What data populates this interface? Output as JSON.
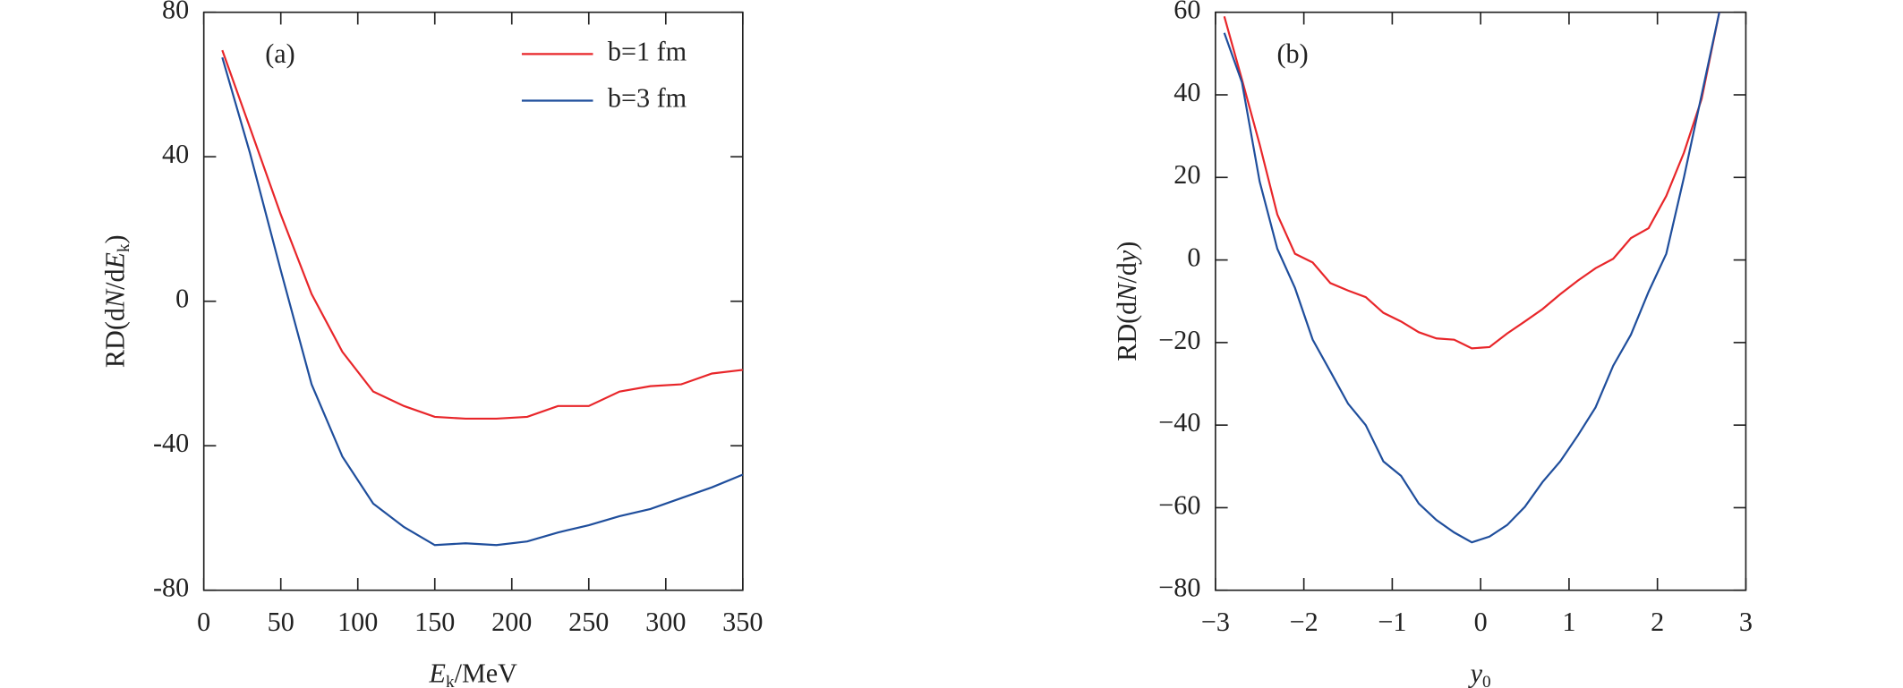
{
  "chart_data": [
    {
      "type": "line",
      "annotation": "(a)",
      "xlabel": [
        "E",
        "k",
        "/MeV"
      ],
      "ylabel": [
        "RD(d",
        "N",
        "/d",
        "E",
        "k",
        ")"
      ],
      "x": [
        12,
        30,
        50,
        70,
        90,
        110,
        130,
        150,
        170,
        190,
        210,
        230,
        250,
        270,
        290,
        310,
        330,
        350
      ],
      "series": [
        {
          "name": "b=1 fm",
          "color": "#e8262a",
          "values": [
            69.5,
            48,
            24,
            2,
            -14,
            -25,
            -29,
            -32,
            -32.5,
            -32.5,
            -32,
            -29,
            -29,
            -25,
            -23.5,
            -23,
            -20,
            -19
          ]
        },
        {
          "name": "b=3 fm",
          "color": "#1f4e9c",
          "values": [
            67.5,
            41,
            8.5,
            -23,
            -43,
            -56,
            -62.5,
            -67.5,
            -67,
            -67.5,
            -66.5,
            -64,
            -62,
            -59.5,
            -57.5,
            -54.5,
            -51.5,
            -48
          ]
        }
      ],
      "xlim": [
        0,
        350
      ],
      "xticks": [
        0,
        50,
        100,
        150,
        200,
        250,
        300,
        350
      ],
      "ylim": [
        -80,
        80
      ],
      "yticks": [
        -80,
        -40,
        0,
        40,
        80
      ],
      "legend": "upper right"
    },
    {
      "type": "line",
      "annotation": "(b)",
      "xlabel": [
        "y",
        "0"
      ],
      "ylabel": [
        "RD(d",
        "N",
        "/d",
        "y",
        ")"
      ],
      "x": [
        -2.9,
        -2.7,
        -2.5,
        -2.3,
        -2.1,
        -1.9,
        -1.7,
        -1.5,
        -1.3,
        -1.1,
        -0.9,
        -0.7,
        -0.5,
        -0.3,
        -0.1,
        0.1,
        0.3,
        0.5,
        0.7,
        0.9,
        1.1,
        1.3,
        1.5,
        1.7,
        1.9,
        2.1,
        2.3,
        2.5,
        2.7
      ],
      "series": [
        {
          "color": "#e8262a",
          "values": [
            59,
            43.7,
            28,
            11,
            1.5,
            -0.6,
            -5.6,
            -7.4,
            -9,
            -12.8,
            -14.9,
            -17.5,
            -19,
            -19.3,
            -21.4,
            -21.1,
            -17.8,
            -14.9,
            -11.9,
            -8.3,
            -5,
            -2,
            0.3,
            5.3,
            7.7,
            15.5,
            26,
            39,
            60
          ]
        },
        {
          "color": "#1f4e9c",
          "values": [
            55,
            43,
            19,
            2.7,
            -6.8,
            -19.3,
            -27,
            -34.8,
            -40,
            -48.8,
            -52.3,
            -59,
            -63,
            -66,
            -68.4,
            -67,
            -64.2,
            -59.8,
            -53.8,
            -48.8,
            -42.5,
            -35.7,
            -25.6,
            -18.1,
            -7.7,
            1.5,
            20,
            40,
            60
          ]
        }
      ],
      "xlim": [
        -3,
        3
      ],
      "xticks": [
        {
          "value": -3,
          "label": "−3"
        },
        {
          "value": -2,
          "label": "−2"
        },
        {
          "value": -1,
          "label": "−1"
        },
        0,
        1,
        2,
        3
      ],
      "ylim": [
        -80,
        60
      ],
      "yticks": [
        {
          "value": -80,
          "label": "−80"
        },
        {
          "value": -60,
          "label": "−60"
        },
        {
          "value": -40,
          "label": "−40"
        },
        {
          "value": -20,
          "label": "−20"
        },
        0,
        20,
        40,
        60
      ]
    }
  ]
}
